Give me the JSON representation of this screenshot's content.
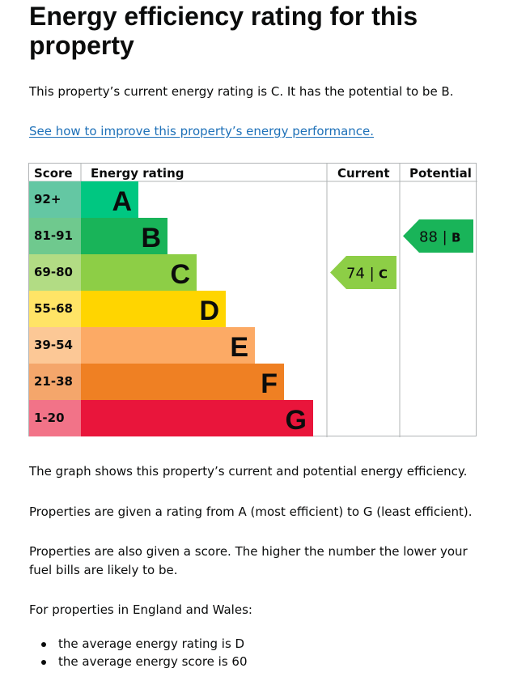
{
  "page": {
    "title": "Energy efficiency rating for this property",
    "intro": "This property’s current energy rating is C. It has the potential to be B.",
    "link_text": "See how to improve this property’s energy performance.",
    "explain_1": "The graph shows this property’s current and potential energy efficiency.",
    "explain_2": "Properties are given a rating from A (most efficient) to G (least efficient).",
    "explain_3": "Properties are also given a score. The higher the number the lower your fuel bills are likely to be.",
    "explain_4": "For properties in England and Wales:",
    "bullets": [
      "the average energy rating is D",
      "the average energy score is 60"
    ]
  },
  "colors": {
    "link": "#1d70b8",
    "band_A": "#00c781",
    "band_B": "#19b459",
    "band_C": "#8dce46",
    "band_D": "#ffd500",
    "band_E": "#fcaa65",
    "band_F": "#ef8023",
    "band_G": "#e9153b"
  },
  "chart_data": {
    "type": "table",
    "columns": [
      "Score",
      "Energy rating",
      "Current",
      "Potential"
    ],
    "bands": [
      {
        "score": "92+",
        "rating": "A",
        "color": "#00c781",
        "tint": "#64c7a3"
      },
      {
        "score": "81-91",
        "rating": "B",
        "color": "#19b459",
        "tint": "#6fc98e"
      },
      {
        "score": "69-80",
        "rating": "C",
        "color": "#8dce46",
        "tint": "#b2dc84"
      },
      {
        "score": "55-68",
        "rating": "D",
        "color": "#ffd500",
        "tint": "#ffe466"
      },
      {
        "score": "39-54",
        "rating": "E",
        "color": "#fcaa65",
        "tint": "#fcc896"
      },
      {
        "score": "21-38",
        "rating": "F",
        "color": "#ef8023",
        "tint": "#f4a66b"
      },
      {
        "score": "1-20",
        "rating": "G",
        "color": "#e9153b",
        "tint": "#f27388"
      }
    ],
    "current": {
      "score": 74,
      "rating": "C"
    },
    "potential": {
      "score": 88,
      "rating": "B"
    }
  }
}
